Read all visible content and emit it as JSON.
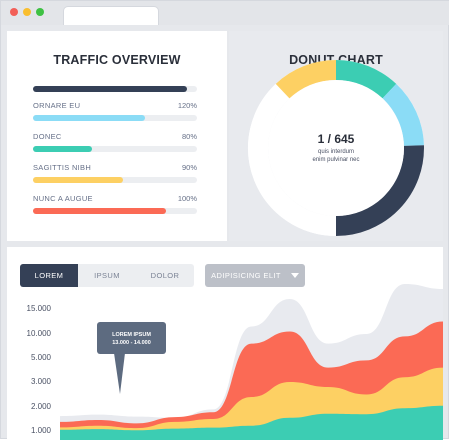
{
  "traffic": {
    "title": "TRAFFIC OVERVIEW",
    "top_bar_value": 0.94,
    "items": [
      {
        "label": "ORNARE EU",
        "percent": "120%",
        "fill": 0.68,
        "color": "#8bdcf6"
      },
      {
        "label": "DONEC",
        "percent": "80%",
        "fill": 0.36,
        "color": "#3ccdb3"
      },
      {
        "label": "SAGITTIS NIBH",
        "percent": "90%",
        "fill": 0.55,
        "color": "#fdd063"
      },
      {
        "label": "NUNC A AUGUE",
        "percent": "100%",
        "fill": 0.81,
        "color": "#fb6a55"
      }
    ]
  },
  "donut": {
    "title": "DONUT CHART",
    "center_value": "1 / 645",
    "center_line1": "quis interdum",
    "center_line2": "enim pulvinar nec",
    "segments": [
      {
        "value": 0.12,
        "color": "#3ccdb3"
      },
      {
        "value": 0.125,
        "color": "#8bdcf6"
      },
      {
        "value": 0.255,
        "color": "#344056"
      },
      {
        "value": 0.38,
        "color": "#ffffff"
      },
      {
        "value": 0.12,
        "color": "#fdd063"
      }
    ]
  },
  "controls": {
    "tabs": [
      "LOREM",
      "IPSUM",
      "DOLOR"
    ],
    "active_tab": 0,
    "dropdown_label": "ADIPISICING ELIT"
  },
  "tooltip": {
    "line1": "LOREM IPSUM",
    "line2": "13.000 - 14.000"
  },
  "chart_data": {
    "type": "area",
    "y_tick_labels": [
      "15.000",
      "10.000",
      "5.000",
      "3.000",
      "2.000",
      "1.000"
    ],
    "x": [
      0,
      1,
      2,
      3,
      4,
      5,
      6,
      7,
      8,
      9,
      10
    ],
    "series": [
      {
        "color": "#e8eaef",
        "values": [
          0.62,
          0.68,
          0.6,
          0.55,
          0.9,
          4.3,
          5.4,
          3.6,
          4.0,
          6.0,
          5.8
        ]
      },
      {
        "color": "#fb6a55",
        "values": [
          0.38,
          0.46,
          0.32,
          0.58,
          0.78,
          3.6,
          4.1,
          2.6,
          2.9,
          3.9,
          4.5
        ]
      },
      {
        "color": "#fdd063",
        "values": [
          0.15,
          0.22,
          0.12,
          0.38,
          0.5,
          1.4,
          2.0,
          1.8,
          1.5,
          2.2,
          2.6
        ]
      },
      {
        "color": "#3ccdb3",
        "values": [
          0.05,
          0.08,
          0.03,
          0.1,
          0.14,
          0.22,
          0.55,
          0.72,
          0.7,
          0.95,
          1.05
        ]
      }
    ]
  }
}
